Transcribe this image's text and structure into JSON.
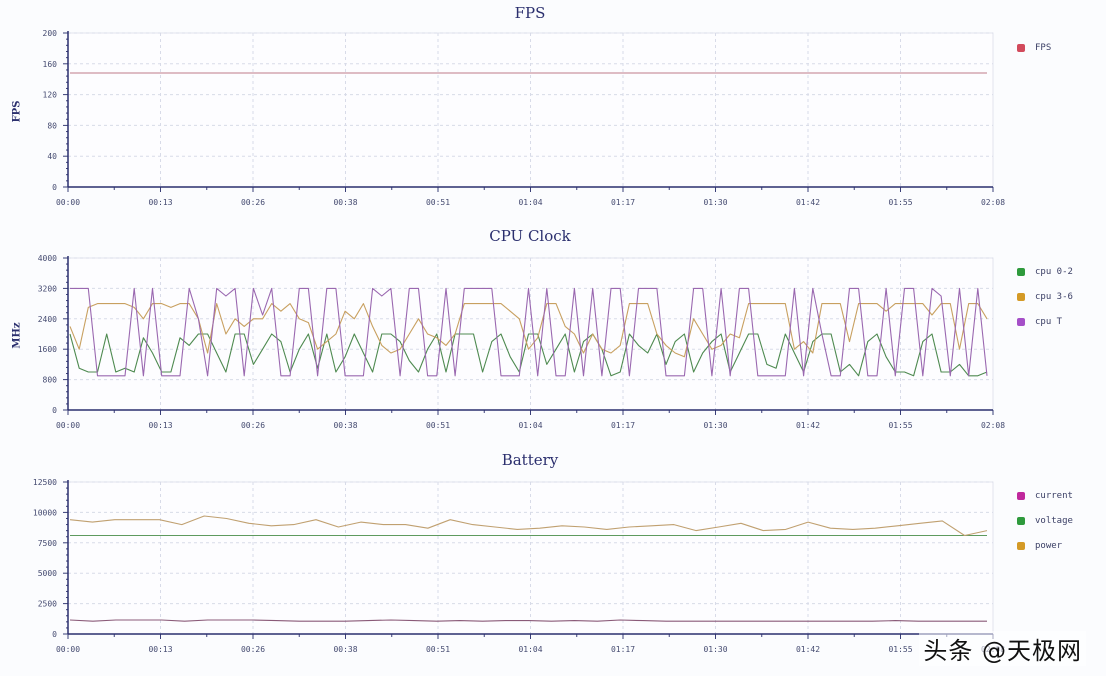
{
  "watermark": "头条 @天极网",
  "x_ticks": [
    "00:00",
    "00:13",
    "00:26",
    "00:38",
    "00:51",
    "01:04",
    "01:17",
    "01:30",
    "01:42",
    "01:55",
    "02:08"
  ],
  "chart_data": [
    {
      "type": "line",
      "title": "FPS",
      "ylabel": "FPS",
      "xlabel": "",
      "ylim": [
        0,
        200
      ],
      "y_ticks": [
        "0",
        "40",
        "80",
        "120",
        "160",
        "200"
      ],
      "grid": true,
      "legend_position": "right",
      "x": [
        "00:00",
        "02:08"
      ],
      "series": [
        {
          "name": "FPS",
          "color": "#d24a5c",
          "line_color": "#c07a8a",
          "values": [
            148,
            148,
            148,
            148,
            148,
            148,
            148,
            148,
            148,
            148,
            148,
            148,
            148,
            148,
            148,
            148,
            148,
            148,
            148,
            148,
            148
          ]
        }
      ]
    },
    {
      "type": "line",
      "title": "CPU Clock",
      "ylabel": "MHz",
      "xlabel": "",
      "ylim": [
        0,
        4000
      ],
      "y_ticks": [
        "0",
        "800",
        "1600",
        "2400",
        "3200",
        "4000"
      ],
      "grid": true,
      "legend_position": "right",
      "series": [
        {
          "name": "cpu 0-2",
          "color": "#2e9a3c",
          "line_color": "#4e8a50",
          "values": [
            2000,
            1100,
            1000,
            1000,
            2000,
            1000,
            1100,
            1000,
            1900,
            1500,
            1000,
            1000,
            1900,
            1700,
            2000,
            2000,
            1500,
            1000,
            2000,
            2000,
            1200,
            1600,
            2000,
            1800,
            1000,
            1600,
            2000,
            1100,
            2000,
            1000,
            1400,
            2000,
            1500,
            1000,
            2000,
            2000,
            1800,
            1300,
            1000,
            1600,
            2000,
            1000,
            2000,
            2000,
            2000,
            1000,
            1800,
            2000,
            1400,
            1000,
            2000,
            2000,
            1200,
            1600,
            2000,
            1000,
            1800,
            2000,
            1600,
            900,
            1000,
            2000,
            1700,
            1500,
            2000,
            1200,
            1800,
            2000,
            1000,
            1500,
            1800,
            2000,
            1000,
            1500,
            2000,
            2000,
            1200,
            1100,
            2000,
            1500,
            1000,
            1800,
            2000,
            2000,
            1000,
            1200,
            900,
            1800,
            2000,
            1400,
            1000,
            1000,
            900,
            1800,
            2000,
            1000,
            1000,
            1200,
            900,
            900,
            1000
          ]
        },
        {
          "name": "cpu 3-6",
          "color": "#d49a26",
          "line_color": "#c8a060",
          "values": [
            2200,
            1600,
            2700,
            2800,
            2800,
            2800,
            2800,
            2700,
            2400,
            2800,
            2800,
            2700,
            2800,
            2800,
            2400,
            1500,
            2800,
            2000,
            2400,
            2200,
            2400,
            2400,
            2800,
            2600,
            2800,
            2400,
            2300,
            1600,
            1800,
            2000,
            2600,
            2400,
            2800,
            2200,
            1700,
            1500,
            1600,
            2000,
            2400,
            2000,
            1900,
            1700,
            2000,
            2800,
            2800,
            2800,
            2800,
            2800,
            2600,
            2400,
            1600,
            1900,
            2800,
            2800,
            2200,
            2000,
            1500,
            2000,
            1600,
            1500,
            1700,
            2800,
            2800,
            2800,
            2000,
            1700,
            1500,
            1400,
            2400,
            2000,
            1600,
            1700,
            2000,
            1900,
            2800,
            2800,
            2800,
            2800,
            2800,
            1600,
            1800,
            1500,
            2800,
            2800,
            2800,
            1800,
            2800,
            2800,
            2800,
            2600,
            2800,
            2800,
            2800,
            2800,
            2500,
            2800,
            2800,
            1600,
            2800,
            2800,
            2400
          ]
        },
        {
          "name": "cpu T",
          "color": "#a54fc8",
          "line_color": "#9a68b0",
          "values": [
            3200,
            3200,
            3200,
            900,
            900,
            900,
            900,
            3200,
            900,
            3200,
            900,
            900,
            900,
            3200,
            2400,
            900,
            3200,
            3000,
            3200,
            900,
            3200,
            2500,
            3200,
            900,
            900,
            3200,
            3200,
            900,
            3200,
            3200,
            900,
            900,
            900,
            3200,
            3000,
            3200,
            900,
            3200,
            3200,
            900,
            900,
            3200,
            900,
            3200,
            3200,
            3200,
            3200,
            900,
            900,
            900,
            3200,
            900,
            3200,
            900,
            900,
            3200,
            900,
            3200,
            900,
            3200,
            3200,
            900,
            3200,
            3200,
            3200,
            900,
            900,
            900,
            3200,
            3200,
            900,
            3200,
            900,
            3200,
            3200,
            900,
            900,
            900,
            900,
            3200,
            900,
            3200,
            2000,
            900,
            900,
            3200,
            3200,
            900,
            900,
            3200,
            900,
            3200,
            3200,
            900,
            3200,
            3000,
            900,
            3200,
            900,
            3200,
            900
          ]
        }
      ]
    },
    {
      "type": "line",
      "title": "Battery",
      "ylabel": "",
      "xlabel": "",
      "ylim": [
        0,
        12500
      ],
      "y_ticks": [
        "0",
        "2500",
        "5000",
        "7500",
        "10000",
        "12500"
      ],
      "grid": true,
      "legend_position": "right",
      "series": [
        {
          "name": "current",
          "color": "#c0289c",
          "line_color": "#8a5a78",
          "values": [
            1150,
            1050,
            1150,
            1150,
            1150,
            1050,
            1150,
            1150,
            1150,
            1100,
            1050,
            1050,
            1050,
            1100,
            1150,
            1100,
            1050,
            1100,
            1050,
            1100,
            1100,
            1050,
            1100,
            1050,
            1150,
            1100,
            1050,
            1050,
            1050,
            1050,
            1050,
            1050,
            1050,
            1050,
            1050,
            1050,
            1100,
            1050,
            1050,
            1050,
            1050
          ]
        },
        {
          "name": "voltage",
          "color": "#2e9a3c",
          "line_color": "#5e9a5e",
          "values": [
            8100,
            8100,
            8100,
            8100,
            8100,
            8100,
            8100,
            8100,
            8100,
            8100,
            8100,
            8100,
            8100,
            8100,
            8100,
            8100,
            8100,
            8100,
            8100,
            8100,
            8100,
            8100,
            8100,
            8100,
            8100,
            8100,
            8100,
            8100,
            8100,
            8100,
            8100,
            8100,
            8100,
            8100,
            8100,
            8100,
            8100,
            8100,
            8100,
            8100,
            8100
          ]
        },
        {
          "name": "power",
          "color": "#d49a26",
          "line_color": "#c0a070",
          "values": [
            9400,
            9200,
            9400,
            9400,
            9400,
            9000,
            9700,
            9500,
            9100,
            8900,
            9000,
            9400,
            8800,
            9200,
            9000,
            9000,
            8700,
            9400,
            9000,
            8800,
            8600,
            8700,
            8900,
            8800,
            8600,
            8800,
            8900,
            9000,
            8500,
            8800,
            9100,
            8500,
            8600,
            9200,
            8700,
            8600,
            8700,
            8900,
            9100,
            9300,
            8100,
            8500
          ]
        }
      ]
    }
  ]
}
